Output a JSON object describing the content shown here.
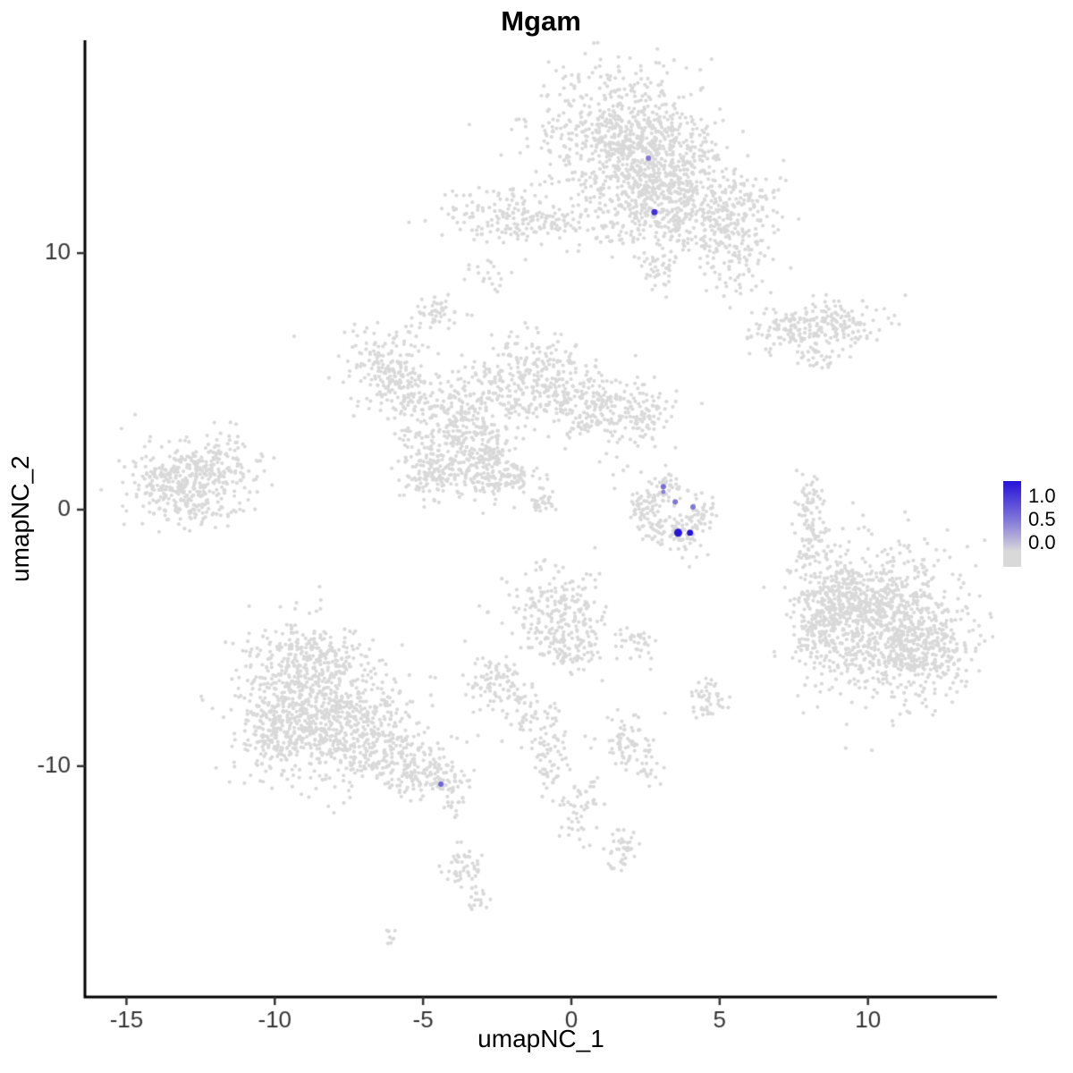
{
  "title": "Mgam",
  "chart_data": {
    "type": "scatter",
    "title": "Mgam",
    "xlabel": "umapNC_1",
    "ylabel": "umapNC_2",
    "xlim": [
      -16.4,
      14.35
    ],
    "ylim": [
      -19.0,
      18.3
    ],
    "x_ticks": [
      -15,
      -10,
      -5,
      0,
      5,
      10
    ],
    "y_ticks": [
      -10,
      0,
      10
    ],
    "grid": false,
    "legend_position": "right",
    "background_point_color": "#d9d9d9",
    "point_radius": 2.1,
    "axis_color": "#000000",
    "tick_label_color": "#333333",
    "legend": {
      "labels": [
        "1.0",
        "0.5",
        "0.0"
      ],
      "low_color": "#d9d9d9",
      "high_color": "#2612d9"
    },
    "clusters_format": [
      "x",
      "y",
      "sx",
      "sy",
      "n"
    ],
    "clusters": [
      [
        1.7,
        14.6,
        1.35,
        1.32,
        700
      ],
      [
        3.2,
        13.1,
        1.05,
        1.05,
        300
      ],
      [
        4.5,
        11.7,
        1.2,
        0.87,
        250
      ],
      [
        5.3,
        10.1,
        0.75,
        0.87,
        120
      ],
      [
        1.8,
        11.5,
        0.9,
        0.87,
        150
      ],
      [
        2.9,
        9.4,
        0.36,
        0.42,
        40
      ],
      [
        5.9,
        12.0,
        0.45,
        0.63,
        60
      ],
      [
        -2.4,
        11.5,
        0.84,
        0.49,
        130
      ],
      [
        -0.7,
        11.3,
        0.75,
        0.35,
        60
      ],
      [
        -2.8,
        9.1,
        0.3,
        0.35,
        20
      ],
      [
        -4.5,
        7.7,
        0.4,
        0.3,
        45
      ],
      [
        7.3,
        7.0,
        0.66,
        0.45,
        110
      ],
      [
        9.1,
        7.1,
        0.75,
        0.49,
        120
      ],
      [
        8.3,
        5.9,
        0.36,
        0.28,
        30
      ],
      [
        -6.4,
        5.7,
        0.75,
        0.77,
        160
      ],
      [
        -5.5,
        4.4,
        0.54,
        0.52,
        80
      ],
      [
        -1.2,
        5.4,
        0.84,
        0.77,
        200
      ],
      [
        -3.3,
        4.2,
        0.9,
        0.7,
        150
      ],
      [
        -4.0,
        2.6,
        0.9,
        0.98,
        280
      ],
      [
        -2.8,
        1.4,
        0.6,
        0.63,
        120
      ],
      [
        0.6,
        4.2,
        1.05,
        0.7,
        220
      ],
      [
        2.3,
        3.7,
        0.54,
        0.49,
        80
      ],
      [
        -2.7,
        2.3,
        0.25,
        0.25,
        30
      ],
      [
        -1.8,
        1.3,
        0.25,
        0.25,
        30
      ],
      [
        -1.0,
        0.3,
        0.25,
        0.25,
        30
      ],
      [
        -4.8,
        1.4,
        0.45,
        0.52,
        70
      ],
      [
        1.8,
        2.3,
        0.75,
        0.87,
        15
      ],
      [
        -13.4,
        1.0,
        0.84,
        0.77,
        250
      ],
      [
        -11.9,
        1.7,
        0.75,
        0.63,
        150
      ],
      [
        -12.5,
        0.0,
        0.6,
        0.42,
        60
      ],
      [
        3.2,
        0.9,
        0.3,
        0.35,
        40
      ],
      [
        2.7,
        -0.3,
        0.36,
        0.49,
        60
      ],
      [
        3.6,
        -0.9,
        0.45,
        0.35,
        60
      ],
      [
        4.4,
        -0.2,
        0.3,
        0.42,
        40
      ],
      [
        4.1,
        -2.1,
        0.15,
        0.15,
        3
      ],
      [
        2.4,
        0.3,
        0.24,
        0.28,
        20
      ],
      [
        8.0,
        0.5,
        0.3,
        0.49,
        40
      ],
      [
        8.2,
        -0.9,
        0.3,
        0.56,
        50
      ],
      [
        7.9,
        -1.9,
        0.24,
        0.28,
        20
      ],
      [
        10.6,
        -4.4,
        1.35,
        1.4,
        900
      ],
      [
        9.2,
        -3.5,
        0.75,
        0.87,
        200
      ],
      [
        11.9,
        -5.6,
        0.75,
        0.77,
        150
      ],
      [
        8.5,
        -4.5,
        0.45,
        0.87,
        80
      ],
      [
        8.0,
        -4.5,
        0.24,
        1.05,
        30
      ],
      [
        -0.4,
        -4.0,
        0.84,
        0.87,
        220
      ],
      [
        0.0,
        -5.6,
        0.45,
        0.42,
        60
      ],
      [
        2.1,
        -5.2,
        0.36,
        0.35,
        35
      ],
      [
        4.7,
        -7.5,
        0.36,
        0.42,
        45
      ],
      [
        -8.9,
        -7.1,
        1.2,
        1.22,
        600
      ],
      [
        -7.2,
        -8.7,
        1.05,
        0.98,
        350
      ],
      [
        -9.9,
        -8.9,
        0.75,
        0.87,
        180
      ],
      [
        -5.5,
        -9.9,
        0.75,
        0.63,
        150
      ],
      [
        -4.3,
        -10.6,
        0.45,
        0.35,
        60
      ],
      [
        -8.7,
        -5.6,
        0.6,
        0.42,
        80
      ],
      [
        -4.0,
        -11.7,
        0.18,
        0.21,
        10
      ],
      [
        -2.5,
        -6.8,
        0.54,
        0.52,
        90
      ],
      [
        -1.5,
        -8.0,
        0.3,
        0.52,
        40
      ],
      [
        -0.7,
        -9.6,
        0.3,
        0.87,
        70
      ],
      [
        1.8,
        -9.1,
        0.45,
        0.63,
        70
      ],
      [
        0.3,
        -11.7,
        0.36,
        0.7,
        50
      ],
      [
        1.8,
        -13.1,
        0.36,
        0.42,
        40
      ],
      [
        2.7,
        -10.1,
        0.24,
        0.28,
        15
      ],
      [
        -3.6,
        -14.1,
        0.36,
        0.52,
        50
      ],
      [
        -3.0,
        -15.0,
        0.24,
        0.28,
        15
      ],
      [
        -6.0,
        -16.6,
        0.18,
        0.17,
        8
      ]
    ],
    "expressing_cells": [
      {
        "x": 2.6,
        "y": 13.7,
        "value": 0.5,
        "r": 3
      },
      {
        "x": 2.8,
        "y": 11.6,
        "value": 0.85,
        "r": 3.5
      },
      {
        "x": 3.1,
        "y": 0.9,
        "value": 0.55,
        "r": 3
      },
      {
        "x": 3.1,
        "y": 0.7,
        "value": 0.45,
        "r": 2.5
      },
      {
        "x": 3.5,
        "y": 0.3,
        "value": 0.5,
        "r": 3
      },
      {
        "x": 4.1,
        "y": 0.1,
        "value": 0.5,
        "r": 3
      },
      {
        "x": 3.6,
        "y": -0.9,
        "value": 1.0,
        "r": 4.5
      },
      {
        "x": 4.0,
        "y": -0.9,
        "value": 1.0,
        "r": 3.5
      },
      {
        "x": -4.4,
        "y": -10.7,
        "value": 0.6,
        "r": 3
      }
    ]
  }
}
